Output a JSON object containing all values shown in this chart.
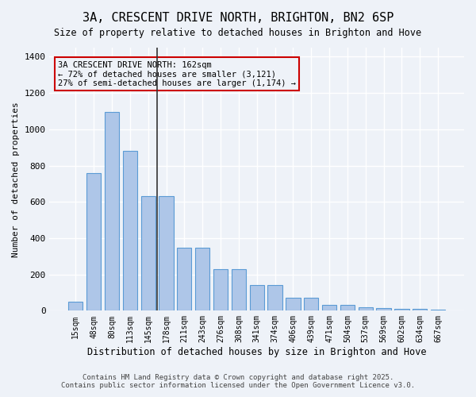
{
  "title": "3A, CRESCENT DRIVE NORTH, BRIGHTON, BN2 6SP",
  "subtitle": "Size of property relative to detached houses in Brighton and Hove",
  "xlabel": "Distribution of detached houses by size in Brighton and Hove",
  "ylabel": "Number of detached properties",
  "annotation_title": "3A CRESCENT DRIVE NORTH: 162sqm",
  "annotation_line1": "← 72% of detached houses are smaller (3,121)",
  "annotation_line2": "27% of semi-detached houses are larger (1,174) →",
  "categories": [
    "15sqm",
    "48sqm",
    "80sqm",
    "113sqm",
    "145sqm",
    "178sqm",
    "211sqm",
    "243sqm",
    "276sqm",
    "308sqm",
    "341sqm",
    "374sqm",
    "406sqm",
    "439sqm",
    "471sqm",
    "504sqm",
    "537sqm",
    "569sqm",
    "602sqm",
    "634sqm",
    "667sqm"
  ],
  "values": [
    50,
    760,
    1095,
    880,
    630,
    630,
    345,
    345,
    230,
    230,
    140,
    140,
    70,
    70,
    30,
    30,
    20,
    15,
    10,
    10,
    5
  ],
  "bar_color": "#aec6e8",
  "bar_edge_color": "#5b9bd5",
  "bg_color": "#eef2f8",
  "grid_color": "#ffffff",
  "vline_x_index": 5,
  "vline_color": "#333333",
  "annotation_box_color": "#cc0000",
  "ylim": [
    0,
    1450
  ],
  "footer_line1": "Contains HM Land Registry data © Crown copyright and database right 2025.",
  "footer_line2": "Contains public sector information licensed under the Open Government Licence v3.0."
}
